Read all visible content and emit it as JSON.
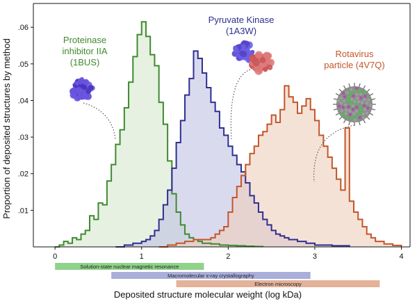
{
  "chart_data": {
    "type": "area",
    "xlabel": "Deposited structure molecular weight (log kDa)",
    "ylabel": "Proportion of deposited structures by method",
    "xlim": [
      -0.25,
      4.1
    ],
    "ylim": [
      0,
      0.0665
    ],
    "xticks": [
      "0",
      "1",
      "2",
      "3",
      "4"
    ],
    "yticks": [
      ".01",
      ".02",
      ".03",
      ".04",
      ".05",
      ".06"
    ],
    "grid": false,
    "series": [
      {
        "key": "nmr",
        "color": "#3f8a2f",
        "fill": "#d6e8cf",
        "points": [
          [
            0.0,
            0.0
          ],
          [
            0.05,
            0.0005
          ],
          [
            0.1,
            0.0015
          ],
          [
            0.15,
            0.001
          ],
          [
            0.2,
            0.0025
          ],
          [
            0.25,
            0.002
          ],
          [
            0.3,
            0.0035
          ],
          [
            0.35,
            0.0045
          ],
          [
            0.4,
            0.0085
          ],
          [
            0.45,
            0.0075
          ],
          [
            0.5,
            0.012
          ],
          [
            0.55,
            0.0115
          ],
          [
            0.6,
            0.018
          ],
          [
            0.65,
            0.0225
          ],
          [
            0.7,
            0.028
          ],
          [
            0.75,
            0.032
          ],
          [
            0.8,
            0.038
          ],
          [
            0.85,
            0.045
          ],
          [
            0.9,
            0.052
          ],
          [
            0.95,
            0.058
          ],
          [
            1.0,
            0.0615
          ],
          [
            1.05,
            0.0575
          ],
          [
            1.1,
            0.0525
          ],
          [
            1.15,
            0.0495
          ],
          [
            1.2,
            0.0395
          ],
          [
            1.25,
            0.0335
          ],
          [
            1.3,
            0.0235
          ],
          [
            1.35,
            0.0145
          ],
          [
            1.4,
            0.0095
          ],
          [
            1.45,
            0.006
          ],
          [
            1.5,
            0.0035
          ],
          [
            1.55,
            0.0025
          ],
          [
            1.6,
            0.002
          ],
          [
            1.65,
            0.0015
          ],
          [
            1.7,
            0.001
          ],
          [
            1.75,
            0.001
          ],
          [
            1.8,
            0.0008
          ],
          [
            1.9,
            0.0005
          ],
          [
            2.0,
            0.0004
          ],
          [
            2.1,
            0.0003
          ],
          [
            2.2,
            0.0002
          ],
          [
            2.3,
            0.0001
          ],
          [
            2.4,
            0.0
          ]
        ]
      },
      {
        "key": "xray",
        "color": "#2e2f8f",
        "fill": "#bfc2e3",
        "points": [
          [
            0.7,
            0.0
          ],
          [
            0.8,
            0.0005
          ],
          [
            0.9,
            0.001
          ],
          [
            1.0,
            0.0015
          ],
          [
            1.05,
            0.002
          ],
          [
            1.1,
            0.003
          ],
          [
            1.15,
            0.0045
          ],
          [
            1.2,
            0.0075
          ],
          [
            1.25,
            0.0115
          ],
          [
            1.3,
            0.0155
          ],
          [
            1.35,
            0.0215
          ],
          [
            1.4,
            0.0285
          ],
          [
            1.45,
            0.0345
          ],
          [
            1.5,
            0.0415
          ],
          [
            1.55,
            0.046
          ],
          [
            1.6,
            0.0535
          ],
          [
            1.65,
            0.0515
          ],
          [
            1.7,
            0.0475
          ],
          [
            1.75,
            0.0435
          ],
          [
            1.8,
            0.0395
          ],
          [
            1.85,
            0.037
          ],
          [
            1.9,
            0.0325
          ],
          [
            1.95,
            0.0305
          ],
          [
            2.0,
            0.0275
          ],
          [
            2.05,
            0.025
          ],
          [
            2.1,
            0.0225
          ],
          [
            2.15,
            0.0205
          ],
          [
            2.2,
            0.0175
          ],
          [
            2.25,
            0.014
          ],
          [
            2.3,
            0.012
          ],
          [
            2.35,
            0.0095
          ],
          [
            2.4,
            0.0075
          ],
          [
            2.45,
            0.006
          ],
          [
            2.5,
            0.0045
          ],
          [
            2.55,
            0.0035
          ],
          [
            2.6,
            0.003
          ],
          [
            2.65,
            0.0025
          ],
          [
            2.7,
            0.002
          ],
          [
            2.8,
            0.0015
          ],
          [
            2.9,
            0.001
          ],
          [
            3.0,
            0.0005
          ],
          [
            3.2,
            0.0003
          ],
          [
            3.4,
            0.0
          ]
        ]
      },
      {
        "key": "em",
        "color": "#c2562a",
        "fill": "#efcfbd",
        "points": [
          [
            1.2,
            0.0
          ],
          [
            1.3,
            0.0005
          ],
          [
            1.4,
            0.001
          ],
          [
            1.5,
            0.0015
          ],
          [
            1.6,
            0.002
          ],
          [
            1.7,
            0.002
          ],
          [
            1.8,
            0.0025
          ],
          [
            1.85,
            0.0035
          ],
          [
            1.9,
            0.0045
          ],
          [
            1.95,
            0.0055
          ],
          [
            2.0,
            0.0095
          ],
          [
            2.05,
            0.0135
          ],
          [
            2.1,
            0.0165
          ],
          [
            2.15,
            0.0195
          ],
          [
            2.2,
            0.0225
          ],
          [
            2.25,
            0.0255
          ],
          [
            2.3,
            0.0275
          ],
          [
            2.35,
            0.0305
          ],
          [
            2.4,
            0.0315
          ],
          [
            2.45,
            0.0335
          ],
          [
            2.5,
            0.036
          ],
          [
            2.55,
            0.034
          ],
          [
            2.6,
            0.0375
          ],
          [
            2.65,
            0.044
          ],
          [
            2.7,
            0.041
          ],
          [
            2.75,
            0.0395
          ],
          [
            2.8,
            0.0365
          ],
          [
            2.85,
            0.0385
          ],
          [
            2.9,
            0.0405
          ],
          [
            2.95,
            0.0375
          ],
          [
            3.0,
            0.0345
          ],
          [
            3.05,
            0.0305
          ],
          [
            3.1,
            0.0275
          ],
          [
            3.15,
            0.0245
          ],
          [
            3.2,
            0.0215
          ],
          [
            3.25,
            0.0185
          ],
          [
            3.3,
            0.0155
          ],
          [
            3.35,
            0.0325
          ],
          [
            3.4,
            0.0125
          ],
          [
            3.45,
            0.0095
          ],
          [
            3.5,
            0.0075
          ],
          [
            3.55,
            0.0055
          ],
          [
            3.6,
            0.0035
          ],
          [
            3.65,
            0.0025
          ],
          [
            3.7,
            0.0015
          ],
          [
            3.8,
            0.0008
          ],
          [
            3.9,
            0.0004
          ],
          [
            4.0,
            0.0
          ]
        ]
      }
    ],
    "method_bands": [
      {
        "label": "Solution-state nuclear magnetic resonance",
        "color": "#8fd28a",
        "x": [
          0.0,
          1.72
        ]
      },
      {
        "label": "Macromolecular x-ray crystallography",
        "color": "#a9aedb",
        "x": [
          0.65,
          2.95
        ]
      },
      {
        "label": "Electron microscopy",
        "color": "#e3b299",
        "x": [
          1.4,
          3.75
        ]
      }
    ],
    "annotations": [
      {
        "key": "nmr",
        "lines": [
          "Proteinase",
          "inhibitor IIA",
          "(1BUS)"
        ],
        "color": "#3f8a2f"
      },
      {
        "key": "xray",
        "lines": [
          "Pyruvate Kinase",
          "(1A3W)"
        ],
        "color": "#2e2f8f"
      },
      {
        "key": "em",
        "lines": [
          "Rotavirus",
          "particle (4V7Q)"
        ],
        "color": "#c2562a"
      }
    ]
  }
}
